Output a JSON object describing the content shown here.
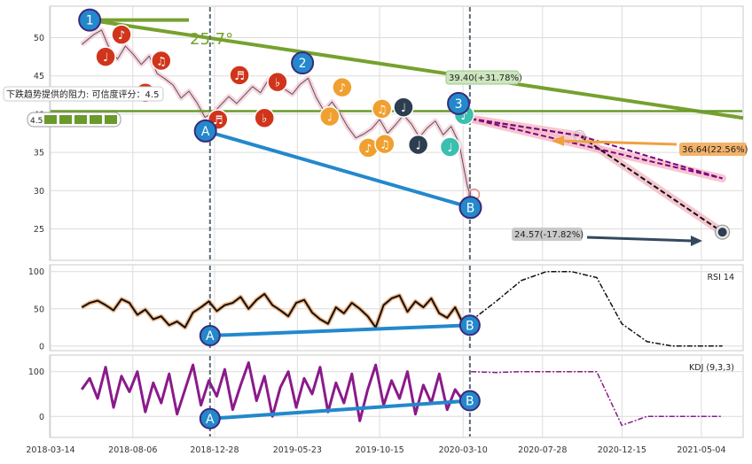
{
  "chart_data": [
    {
      "type": "line",
      "panel": "price",
      "ylim": [
        21,
        54
      ],
      "y_ticks": [
        25,
        30,
        35,
        40,
        45,
        50
      ],
      "x_range": [
        "2018-03-14",
        "2021-07-15"
      ],
      "x_ticks": [
        "2018-03-14",
        "2018-08-06",
        "2018-12-28",
        "2019-05-23",
        "2019-10-15",
        "2020-03-10",
        "2020-07-28",
        "2020-12-15",
        "2021-05-04"
      ],
      "grid": true,
      "series": [
        {
          "x": [
            "2018-05-08",
            "2018-05-29",
            "2018-06-12",
            "2018-06-26",
            "2018-07-10",
            "2018-07-24",
            "2018-08-07",
            "2018-08-21",
            "2018-09-04",
            "2018-09-18",
            "2018-10-02",
            "2018-10-16",
            "2018-10-30",
            "2018-11-13",
            "2018-11-27",
            "2018-12-11",
            "2018-12-25",
            "2019-01-08",
            "2019-01-22",
            "2019-02-05",
            "2019-02-19",
            "2019-03-05",
            "2019-03-19",
            "2019-04-02",
            "2019-04-16",
            "2019-04-30",
            "2019-05-14",
            "2019-05-28",
            "2019-06-11",
            "2019-06-25",
            "2019-07-09",
            "2019-07-23",
            "2019-08-06",
            "2019-08-20",
            "2019-09-03",
            "2019-09-17",
            "2019-10-01",
            "2019-10-15",
            "2019-10-29",
            "2019-11-12",
            "2019-11-26",
            "2019-12-10",
            "2019-12-24",
            "2020-01-07",
            "2020-01-21",
            "2020-02-04",
            "2020-02-18",
            "2020-03-03",
            "2020-03-17",
            "2020-03-24"
          ],
          "values": [
            49.1,
            50.4,
            51.0,
            48.5,
            47.2,
            48.9,
            47.8,
            46.5,
            47.6,
            45.3,
            44.6,
            43.8,
            42.1,
            43.0,
            41.5,
            39.6,
            40.1,
            41.2,
            42.3,
            41.4,
            42.5,
            43.6,
            42.8,
            44.5,
            45.1,
            43.3,
            42.6,
            43.9,
            44.7,
            42.2,
            40.4,
            41.6,
            40.1,
            38.3,
            36.9,
            37.4,
            38.1,
            39.3,
            37.5,
            38.6,
            39.9,
            38.7,
            37.0,
            38.2,
            39.1,
            37.3,
            38.4,
            36.2,
            30.8,
            28.9
          ]
        }
      ],
      "projections": [
        {
          "points": [
            [
              "2020-03-24",
              39.4
            ],
            [
              "2020-10-01",
              37.2
            ],
            [
              "2021-06-10",
              24.57
            ]
          ],
          "label": "24.57(-17.82%)"
        },
        {
          "points": [
            [
              "2020-03-24",
              39.4
            ],
            [
              "2021-06-10",
              31.6
            ]
          ],
          "label": "36.64(22.56%)"
        }
      ],
      "pattern_points": [
        {
          "label": "1",
          "x": "2018-05-22",
          "y": 52.3
        },
        {
          "label": "2",
          "x": "2019-06-01",
          "y": 46.7
        },
        {
          "label": "3",
          "x": "2020-03-02",
          "y": 41.4
        },
        {
          "label": "A",
          "x": "2018-12-12",
          "y": 37.8
        },
        {
          "label": "B",
          "x": "2020-03-23",
          "y": 27.8
        }
      ],
      "annotations": [
        "25.7°",
        "39.40(+31.78%)",
        "下跌趋势提供的阻力: 可信度评分：4.5",
        "4.5"
      ]
    },
    {
      "type": "line",
      "panel": "rsi",
      "series_label": "RSI 14",
      "ylim": [
        -5,
        108
      ],
      "y_ticks": [
        0,
        50,
        100
      ],
      "grid": true,
      "series": [
        {
          "values_history": [
            52,
            58,
            61,
            55,
            48,
            63,
            58,
            42,
            49,
            36,
            40,
            28,
            33,
            25,
            45,
            52,
            60,
            47,
            55,
            58,
            66,
            50,
            62,
            70,
            55,
            48,
            40,
            58,
            62,
            45,
            36,
            30,
            52,
            44,
            58,
            50,
            40,
            25,
            55,
            64,
            68,
            46,
            60,
            52,
            64,
            44,
            38,
            52,
            30,
            28
          ]
        },
        {
          "values_projection": [
            34,
            60,
            88,
            100,
            100,
            92,
            30,
            6,
            0,
            0,
            0
          ]
        }
      ],
      "divergence": [
        {
          "label": "A",
          "y": 14
        },
        {
          "label": "B",
          "y": 28
        }
      ]
    },
    {
      "type": "line",
      "panel": "kdj",
      "series_label": "KDJ (9,3,3)",
      "ylim": [
        -45,
        135
      ],
      "y_ticks": [
        0,
        100
      ],
      "grid": true,
      "series": [
        {
          "values_history": [
            60,
            85,
            40,
            110,
            20,
            90,
            55,
            100,
            10,
            75,
            30,
            95,
            5,
            60,
            115,
            25,
            80,
            45,
            105,
            15,
            70,
            120,
            35,
            90,
            0,
            65,
            100,
            20,
            85,
            50,
            110,
            10,
            75,
            30,
            95,
            -10,
            60,
            115,
            25,
            80,
            40,
            100,
            5,
            70,
            30,
            95,
            15,
            60,
            35,
            30
          ]
        },
        {
          "values_projection": [
            100,
            98,
            100,
            100,
            100,
            100,
            -20,
            0,
            0,
            0,
            0
          ]
        }
      ],
      "divergence": [
        {
          "label": "A",
          "y": -5
        },
        {
          "label": "B",
          "y": 35
        }
      ]
    }
  ]
}
